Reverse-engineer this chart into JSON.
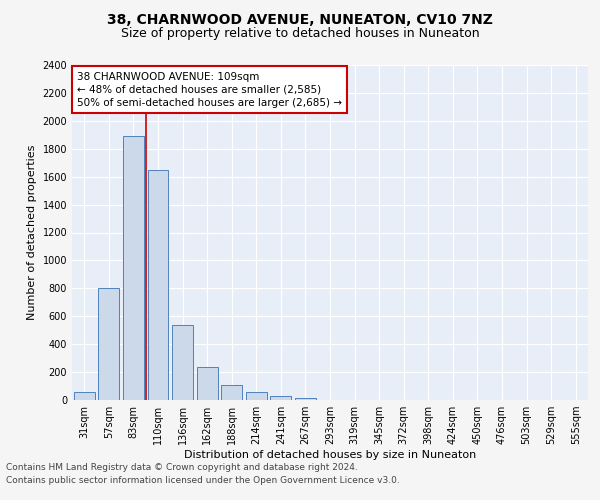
{
  "title1": "38, CHARNWOOD AVENUE, NUNEATON, CV10 7NZ",
  "title2": "Size of property relative to detached houses in Nuneaton",
  "xlabel": "Distribution of detached houses by size in Nuneaton",
  "ylabel": "Number of detached properties",
  "bar_color": "#ccd9ea",
  "bar_edge_color": "#4f81bd",
  "categories": [
    "31sqm",
    "57sqm",
    "83sqm",
    "110sqm",
    "136sqm",
    "162sqm",
    "188sqm",
    "214sqm",
    "241sqm",
    "267sqm",
    "293sqm",
    "319sqm",
    "345sqm",
    "372sqm",
    "398sqm",
    "424sqm",
    "450sqm",
    "476sqm",
    "503sqm",
    "529sqm",
    "555sqm"
  ],
  "values": [
    55,
    800,
    1890,
    1650,
    535,
    240,
    107,
    57,
    32,
    17,
    0,
    0,
    0,
    0,
    0,
    0,
    0,
    0,
    0,
    0,
    0
  ],
  "annotation_text": "38 CHARNWOOD AVENUE: 109sqm\n← 48% of detached houses are smaller (2,585)\n50% of semi-detached houses are larger (2,685) →",
  "annotation_box_color": "#ffffff",
  "annotation_box_edge": "#cc0000",
  "vline_color": "#cc0000",
  "ylim": [
    0,
    2400
  ],
  "yticks": [
    0,
    200,
    400,
    600,
    800,
    1000,
    1200,
    1400,
    1600,
    1800,
    2000,
    2200,
    2400
  ],
  "footer1": "Contains HM Land Registry data © Crown copyright and database right 2024.",
  "footer2": "Contains public sector information licensed under the Open Government Licence v3.0.",
  "fig_bg_color": "#f5f5f5",
  "plot_bg_color": "#e8eef7",
  "grid_color": "#ffffff",
  "title1_fontsize": 10,
  "title2_fontsize": 9,
  "axis_label_fontsize": 8,
  "tick_fontsize": 7,
  "annotation_fontsize": 7.5,
  "footer_fontsize": 6.5
}
